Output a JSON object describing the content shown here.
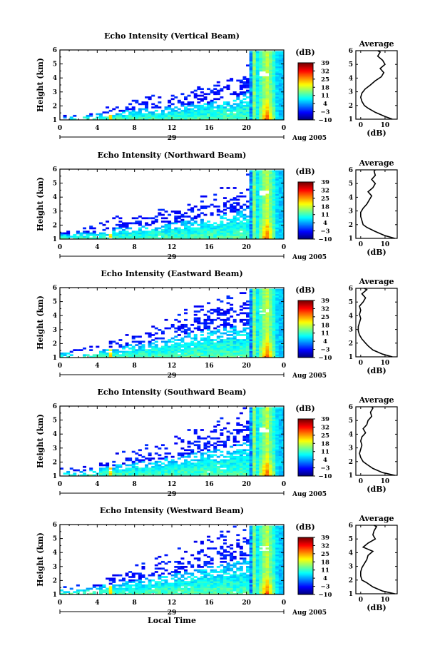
{
  "figure": {
    "xlabel": "Local Time",
    "day_label": "29",
    "month_label": "Aug 2005",
    "height_label": "Height (km)",
    "colorbar_unit": "(dB)",
    "colorbar_ticks": [
      "39",
      "32",
      "25",
      "18",
      "11",
      "4",
      "−3",
      "−10"
    ],
    "avg_title": "Average",
    "avg_xlabel": "(dB)"
  },
  "chart_data": [
    {
      "type": "heatmap",
      "title": "Echo Intensity (Vertical Beam)",
      "xlabel": "",
      "ylabel": "Height (km)",
      "x_ticks": [
        "0",
        "4",
        "8",
        "12",
        "16",
        "20",
        "0"
      ],
      "xlim": [
        0,
        24
      ],
      "ylim": [
        1,
        6
      ],
      "y_ticks": [
        "1",
        "2",
        "3",
        "4",
        "5",
        "6"
      ],
      "colorbar": {
        "label": "(dB)",
        "range": [
          -10,
          39
        ],
        "ticks": [
          39,
          32,
          25,
          18,
          11,
          4,
          -3,
          -10
        ]
      },
      "echo_top_km": [
        [
          0,
          1.3
        ],
        [
          2,
          1.5
        ],
        [
          4,
          1.7
        ],
        [
          6,
          1.9
        ],
        [
          8,
          2.3
        ],
        [
          10,
          2.4
        ],
        [
          12,
          2.6
        ],
        [
          14,
          2.9
        ],
        [
          16,
          3.1
        ],
        [
          18,
          3.5
        ],
        [
          20,
          4.2
        ],
        [
          22,
          6.3
        ],
        [
          24,
          6.3
        ]
      ],
      "average_profile": {
        "title": "Average",
        "xlabel": "(dB)",
        "xlim": [
          -2,
          15
        ],
        "x_ticks": [
          "0",
          "10"
        ],
        "ylim": [
          1,
          6
        ],
        "height_km": [
          1.0,
          1.2,
          1.5,
          1.8,
          2.0,
          2.3,
          2.6,
          2.9,
          3.2,
          3.5,
          3.8,
          4.1,
          4.4,
          4.7,
          5.0,
          5.3,
          5.6,
          5.9,
          6.2
        ],
        "value_db": [
          13,
          10,
          6,
          3,
          1.5,
          0.5,
          0,
          0.5,
          1.8,
          4,
          6,
          8.5,
          9.5,
          8,
          10,
          9,
          7,
          8,
          7
        ]
      }
    },
    {
      "type": "heatmap",
      "title": "Echo Intensity (Northward Beam)",
      "xlabel": "",
      "ylabel": "Height (km)",
      "x_ticks": [
        "0",
        "4",
        "8",
        "12",
        "16",
        "20",
        "0"
      ],
      "xlim": [
        0,
        24
      ],
      "ylim": [
        1,
        6
      ],
      "y_ticks": [
        "1",
        "2",
        "3",
        "4",
        "5",
        "6"
      ],
      "colorbar": {
        "label": "(dB)",
        "range": [
          -10,
          39
        ],
        "ticks": [
          39,
          32,
          25,
          18,
          11,
          4,
          -3,
          -10
        ]
      },
      "echo_top_km": [
        [
          0,
          1.6
        ],
        [
          2,
          1.8
        ],
        [
          4,
          1.9
        ],
        [
          6,
          2.3
        ],
        [
          8,
          2.5
        ],
        [
          10,
          2.7
        ],
        [
          12,
          2.9
        ],
        [
          14,
          3.3
        ],
        [
          16,
          3.6
        ],
        [
          18,
          4.1
        ],
        [
          20,
          4.6
        ],
        [
          22,
          6.3
        ],
        [
          24,
          6.3
        ]
      ],
      "average_profile": {
        "title": "Average",
        "xlabel": "(dB)",
        "xlim": [
          -2,
          15
        ],
        "x_ticks": [
          "0",
          "10"
        ],
        "ylim": [
          1,
          6
        ],
        "height_km": [
          1.0,
          1.2,
          1.5,
          1.8,
          2.0,
          2.3,
          2.6,
          2.9,
          3.2,
          3.5,
          3.8,
          4.1,
          4.4,
          4.7,
          5.0,
          5.3,
          5.6,
          5.9,
          6.2
        ],
        "value_db": [
          14,
          10,
          6,
          2.5,
          1,
          0.5,
          0,
          0,
          1,
          2.5,
          3.5,
          4.5,
          3,
          5,
          6,
          4.5,
          6,
          5.5,
          6
        ]
      }
    },
    {
      "type": "heatmap",
      "title": "Echo Intensity (Eastward Beam)",
      "xlabel": "",
      "ylabel": "Height (km)",
      "x_ticks": [
        "0",
        "4",
        "8",
        "12",
        "16",
        "20",
        "0"
      ],
      "xlim": [
        0,
        24
      ],
      "ylim": [
        1,
        6
      ],
      "y_ticks": [
        "1",
        "2",
        "3",
        "4",
        "5",
        "6"
      ],
      "colorbar": {
        "label": "(dB)",
        "range": [
          -10,
          39
        ],
        "ticks": [
          39,
          32,
          25,
          18,
          11,
          4,
          -3,
          -10
        ]
      },
      "echo_top_km": [
        [
          0,
          1.5
        ],
        [
          2,
          1.6
        ],
        [
          4,
          1.8
        ],
        [
          6,
          2.2
        ],
        [
          8,
          2.6
        ],
        [
          10,
          2.9
        ],
        [
          12,
          3.4
        ],
        [
          14,
          4.0
        ],
        [
          16,
          4.4
        ],
        [
          18,
          4.6
        ],
        [
          20,
          4.9
        ],
        [
          22,
          6.3
        ],
        [
          24,
          6.3
        ]
      ],
      "average_profile": {
        "title": "Average",
        "xlabel": "(dB)",
        "xlim": [
          -2,
          15
        ],
        "x_ticks": [
          "0",
          "10"
        ],
        "ylim": [
          1,
          6
        ],
        "height_km": [
          1.0,
          1.2,
          1.5,
          1.8,
          2.0,
          2.3,
          2.6,
          2.9,
          3.2,
          3.5,
          3.8,
          4.1,
          4.4,
          4.7,
          5.0,
          5.3,
          5.6,
          5.9,
          6.2
        ],
        "value_db": [
          13,
          9,
          5,
          3,
          2,
          0.5,
          -0.5,
          -1,
          -1,
          -0.5,
          0,
          -0.5,
          0,
          -0.5,
          1,
          2,
          0.5,
          2.5,
          1.5
        ]
      }
    },
    {
      "type": "heatmap",
      "title": "Echo Intensity (Southward Beam)",
      "xlabel": "",
      "ylabel": "Height (km)",
      "x_ticks": [
        "0",
        "4",
        "8",
        "12",
        "16",
        "20",
        "0"
      ],
      "xlim": [
        0,
        24
      ],
      "ylim": [
        1,
        6
      ],
      "y_ticks": [
        "1",
        "2",
        "3",
        "4",
        "5",
        "6"
      ],
      "colorbar": {
        "label": "(dB)",
        "range": [
          -10,
          39
        ],
        "ticks": [
          39,
          32,
          25,
          18,
          11,
          4,
          -3,
          -10
        ]
      },
      "echo_top_km": [
        [
          0,
          1.5
        ],
        [
          2,
          1.6
        ],
        [
          4,
          1.9
        ],
        [
          6,
          2.3
        ],
        [
          8,
          2.6
        ],
        [
          10,
          2.9
        ],
        [
          12,
          3.2
        ],
        [
          14,
          3.7
        ],
        [
          16,
          4.1
        ],
        [
          18,
          4.5
        ],
        [
          20,
          5.0
        ],
        [
          22,
          6.3
        ],
        [
          24,
          6.3
        ]
      ],
      "average_profile": {
        "title": "Average",
        "xlabel": "(dB)",
        "xlim": [
          -2,
          15
        ],
        "x_ticks": [
          "0",
          "10"
        ],
        "ylim": [
          1,
          6
        ],
        "height_km": [
          1.0,
          1.2,
          1.5,
          1.8,
          2.0,
          2.3,
          2.6,
          2.9,
          3.2,
          3.5,
          3.8,
          4.1,
          4.4,
          4.7,
          5.0,
          5.3,
          5.6,
          5.9,
          6.2
        ],
        "value_db": [
          14,
          9,
          5,
          2.5,
          1,
          0,
          -0.5,
          0,
          0.5,
          0,
          0.5,
          2,
          1,
          2.5,
          3,
          4.5,
          4,
          5,
          4.5
        ]
      }
    },
    {
      "type": "heatmap",
      "title": "Echo Intensity (Westward Beam)",
      "xlabel": "Local Time",
      "ylabel": "Height (km)",
      "x_ticks": [
        "0",
        "4",
        "8",
        "12",
        "16",
        "20",
        "0"
      ],
      "xlim": [
        0,
        24
      ],
      "ylim": [
        1,
        6
      ],
      "y_ticks": [
        "1",
        "2",
        "3",
        "4",
        "5",
        "6"
      ],
      "colorbar": {
        "label": "(dB)",
        "range": [
          -10,
          39
        ],
        "ticks": [
          39,
          32,
          25,
          18,
          11,
          4,
          -3,
          -10
        ]
      },
      "echo_top_km": [
        [
          0,
          1.6
        ],
        [
          2,
          1.8
        ],
        [
          4,
          2.0
        ],
        [
          6,
          2.4
        ],
        [
          8,
          2.7
        ],
        [
          10,
          3.1
        ],
        [
          12,
          3.5
        ],
        [
          14,
          3.9
        ],
        [
          16,
          4.4
        ],
        [
          18,
          4.8
        ],
        [
          20,
          5.2
        ],
        [
          22,
          6.3
        ],
        [
          24,
          6.3
        ]
      ],
      "average_profile": {
        "title": "Average",
        "xlabel": "(dB)",
        "xlim": [
          -2,
          15
        ],
        "x_ticks": [
          "0",
          "10"
        ],
        "ylim": [
          1,
          6
        ],
        "height_km": [
          1.0,
          1.2,
          1.5,
          1.8,
          2.0,
          2.3,
          2.6,
          2.9,
          3.2,
          3.5,
          3.8,
          4.1,
          4.4,
          4.7,
          5.0,
          5.3,
          5.6,
          5.9,
          6.2
        ],
        "value_db": [
          14,
          9,
          5,
          2.5,
          0.5,
          0,
          0,
          0.5,
          1.5,
          2.5,
          3,
          5,
          1,
          3,
          6,
          5,
          5.5,
          6.5,
          5.5
        ]
      }
    }
  ]
}
